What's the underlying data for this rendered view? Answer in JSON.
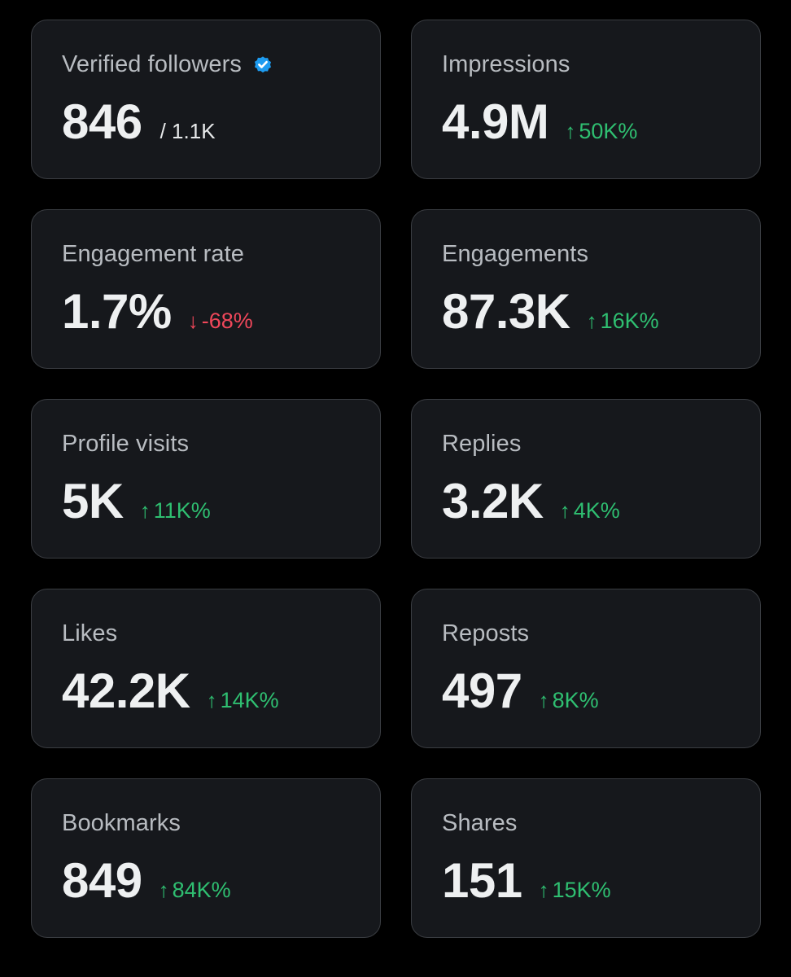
{
  "colors": {
    "card_background": "#16181c",
    "card_border": "#3a3d42",
    "up": "#2fbf71",
    "down": "#f0475a",
    "verified": "#1d9bf0"
  },
  "cards": [
    {
      "label": "Verified followers",
      "value": "846",
      "total": "/ 1.1K",
      "icon": "verified-badge-icon"
    },
    {
      "label": "Impressions",
      "value": "4.9M",
      "trend": "50K%",
      "direction": "up"
    },
    {
      "label": "Engagement rate",
      "value": "1.7%",
      "trend": "-68%",
      "direction": "down"
    },
    {
      "label": "Engagements",
      "value": "87.3K",
      "trend": "16K%",
      "direction": "up"
    },
    {
      "label": "Profile visits",
      "value": "5K",
      "trend": "11K%",
      "direction": "up"
    },
    {
      "label": "Replies",
      "value": "3.2K",
      "trend": "4K%",
      "direction": "up"
    },
    {
      "label": "Likes",
      "value": "42.2K",
      "trend": "14K%",
      "direction": "up"
    },
    {
      "label": "Reposts",
      "value": "497",
      "trend": "8K%",
      "direction": "up"
    },
    {
      "label": "Bookmarks",
      "value": "849",
      "trend": "84K%",
      "direction": "up"
    },
    {
      "label": "Shares",
      "value": "151",
      "trend": "15K%",
      "direction": "up"
    }
  ]
}
